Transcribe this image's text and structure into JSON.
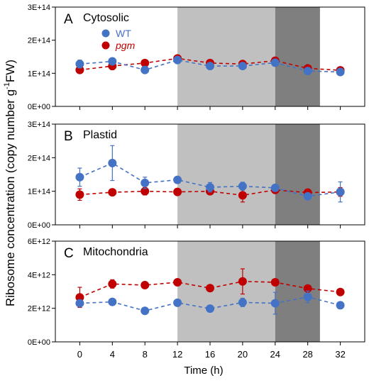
{
  "figure": {
    "ylabel_prefix": "Ribosome concentration (copy number  g",
    "ylabel_sup": "-1",
    "ylabel_suffix": "FW)",
    "xlabel": "Time (h)",
    "x_ticks": [
      "0",
      "4",
      "8",
      "12",
      "16",
      "20",
      "24",
      "28",
      "32"
    ],
    "shading": [
      {
        "from": 12,
        "to": 24,
        "color": "#c0c0c0"
      },
      {
        "from": 24,
        "to": 29.5,
        "color": "#7f7f7f"
      }
    ],
    "colors": {
      "wt": "#4472c4",
      "pgm": "#c00000",
      "axis": "#000000"
    }
  },
  "chart_data": [
    {
      "type": "line",
      "panel_letter": "A",
      "title": "Cytosolic",
      "legend": [
        {
          "key": "wt",
          "label": "WT",
          "italic": false
        },
        {
          "key": "pgm",
          "label": "pgm",
          "italic": true
        }
      ],
      "x": [
        0,
        4,
        8,
        12,
        16,
        20,
        24,
        28,
        32
      ],
      "ylim": [
        0,
        300000000000000.0
      ],
      "y_ticks": [
        0,
        100000000000000.0,
        200000000000000.0,
        300000000000000.0
      ],
      "y_tick_labels": [
        "0E+00",
        "1E+14",
        "2E+14",
        "3E+14"
      ],
      "series": [
        {
          "key": "wt",
          "values": [
            128000000000000.0,
            136000000000000.0,
            110000000000000.0,
            140000000000000.0,
            122000000000000.0,
            122000000000000.0,
            132000000000000.0,
            107000000000000.0,
            104000000000000.0
          ],
          "err": [
            12000000000000.0,
            6000000000000.0,
            6000000000000.0,
            5000000000000.0,
            6000000000000.0,
            7000000000000.0,
            6000000000000.0,
            5000000000000.0,
            6000000000000.0
          ]
        },
        {
          "key": "pgm",
          "values": [
            110000000000000.0,
            122000000000000.0,
            131000000000000.0,
            145000000000000.0,
            131000000000000.0,
            128000000000000.0,
            138000000000000.0,
            115000000000000.0,
            109000000000000.0
          ],
          "err": [
            6000000000000.0,
            11000000000000.0,
            6000000000000.0,
            5000000000000.0,
            6000000000000.0,
            7000000000000.0,
            6000000000000.0,
            4000000000000.0,
            5000000000000.0
          ]
        }
      ]
    },
    {
      "type": "line",
      "panel_letter": "B",
      "title": "Plastid",
      "x": [
        0,
        4,
        8,
        12,
        16,
        20,
        24,
        28,
        32
      ],
      "ylim": [
        0,
        300000000000000.0
      ],
      "y_ticks": [
        0,
        100000000000000.0,
        200000000000000.0,
        300000000000000.0
      ],
      "y_tick_labels": [
        "0E+00",
        "1E+14",
        "2E+14",
        "3E+14"
      ],
      "series": [
        {
          "key": "wt",
          "values": [
            142000000000000.0,
            184000000000000.0,
            125000000000000.0,
            134000000000000.0,
            112000000000000.0,
            115000000000000.0,
            110000000000000.0,
            85000000000000.0,
            98000000000000.0
          ],
          "err": [
            27000000000000.0,
            52000000000000.0,
            17000000000000.0,
            9000000000000.0,
            14000000000000.0,
            12000000000000.0,
            6000000000000.0,
            7000000000000.0,
            30000000000000.0
          ]
        },
        {
          "key": "pgm",
          "values": [
            90000000000000.0,
            97000000000000.0,
            100000000000000.0,
            98000000000000.0,
            100000000000000.0,
            88000000000000.0,
            104000000000000.0,
            96000000000000.0,
            98000000000000.0
          ],
          "err": [
            17000000000000.0,
            5000000000000.0,
            11000000000000.0,
            10000000000000.0,
            9000000000000.0,
            20000000000000.0,
            8000000000000.0,
            5000000000000.0,
            13000000000000.0
          ]
        }
      ]
    },
    {
      "type": "line",
      "panel_letter": "C",
      "title": "Mitochondria",
      "x": [
        0,
        4,
        8,
        12,
        16,
        20,
        24,
        28,
        32
      ],
      "ylim": [
        0,
        6000000000000.0
      ],
      "y_ticks": [
        0,
        2000000000000.0,
        4000000000000.0,
        6000000000000.0
      ],
      "y_tick_labels": [
        "0E+00",
        "2E+12",
        "4E+12",
        "6E+12"
      ],
      "series": [
        {
          "key": "wt",
          "values": [
            2300000000000.0,
            2380000000000.0,
            1850000000000.0,
            2330000000000.0,
            1980000000000.0,
            2350000000000.0,
            2300000000000.0,
            2680000000000.0,
            2180000000000.0
          ],
          "err": [
            200000000000.0,
            100000000000.0,
            120000000000.0,
            150000000000.0,
            150000000000.0,
            250000000000.0,
            650000000000.0,
            350000000000.0,
            200000000000.0
          ]
        },
        {
          "key": "pgm",
          "values": [
            2650000000000.0,
            3450000000000.0,
            3380000000000.0,
            3550000000000.0,
            3200000000000.0,
            3600000000000.0,
            3550000000000.0,
            3180000000000.0,
            2970000000000.0
          ],
          "err": [
            600000000000.0,
            250000000000.0,
            100000000000.0,
            100000000000.0,
            100000000000.0,
            750000000000.0,
            150000000000.0,
            100000000000.0,
            100000000000.0
          ]
        }
      ]
    }
  ]
}
